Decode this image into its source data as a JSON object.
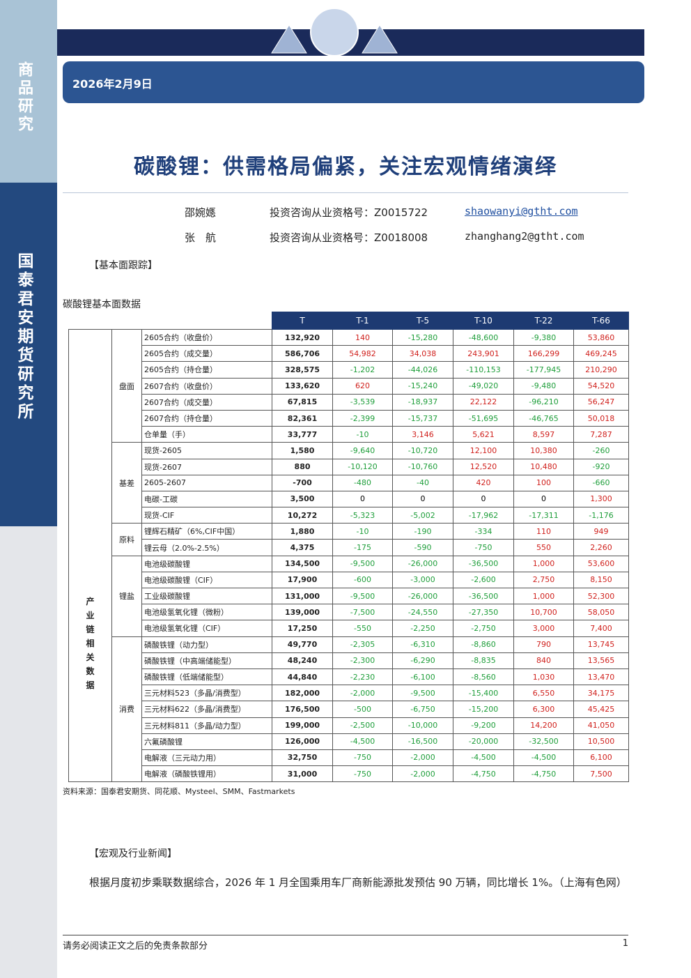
{
  "sidebar": {
    "top": "商品研究",
    "bottom": "国泰君安期货研究所"
  },
  "header": {
    "date": "2026年2月9日",
    "title": "碳酸锂：供需格局偏紧，关注宏观情绪演绎"
  },
  "authors": [
    {
      "name": "邵婉嫕",
      "cert": "投资咨询从业资格号：Z0015722",
      "email": "shaowanyi@gtht.com"
    },
    {
      "name": "张　航",
      "cert": "投资咨询从业资格号：Z0018008",
      "email": "zhanghang2@gtht.com"
    }
  ],
  "section1": "【基本面跟踪】",
  "table": {
    "caption": "碳酸锂基本面数据",
    "headers": [
      "T",
      "T-1",
      "T-5",
      "T-10",
      "T-22",
      "T-66"
    ],
    "group": "产业链相关数据",
    "sections": [
      {
        "name": "盘面",
        "rows": [
          [
            "2605合约（收盘价）",
            "132,920",
            "140",
            "-15,280",
            "-48,600",
            "-9,380",
            "53,860"
          ],
          [
            "2605合约（成交量）",
            "586,706",
            "54,982",
            "34,038",
            "243,901",
            "166,299",
            "469,245"
          ],
          [
            "2605合约（持仓量）",
            "328,575",
            "-1,202",
            "-44,026",
            "-110,153",
            "-177,945",
            "210,290"
          ],
          [
            "2607合约（收盘价）",
            "133,620",
            "620",
            "-15,240",
            "-49,020",
            "-9,480",
            "54,520"
          ],
          [
            "2607合约（成交量）",
            "67,815",
            "-3,539",
            "-18,937",
            "22,122",
            "-96,210",
            "56,247"
          ],
          [
            "2607合约（持仓量）",
            "82,361",
            "-2,399",
            "-15,737",
            "-51,695",
            "-46,765",
            "50,018"
          ],
          [
            "仓单量（手）",
            "33,777",
            "-10",
            "3,146",
            "5,621",
            "8,597",
            "7,287"
          ]
        ]
      },
      {
        "name": "基差",
        "rows": [
          [
            "现货-2605",
            "1,580",
            "-9,640",
            "-10,720",
            "12,100",
            "10,380",
            "-260"
          ],
          [
            "现货-2607",
            "880",
            "-10,120",
            "-10,760",
            "12,520",
            "10,480",
            "-920"
          ],
          [
            "2605-2607",
            "-700",
            "-480",
            "-40",
            "420",
            "100",
            "-660"
          ],
          [
            "电碳-工碳",
            "3,500",
            "0",
            "0",
            "0",
            "0",
            "1,300"
          ],
          [
            "现货-CIF",
            "10,272",
            "-5,323",
            "-5,002",
            "-17,962",
            "-17,311",
            "-1,176"
          ]
        ]
      },
      {
        "name": "原料",
        "rows": [
          [
            "锂辉石精矿（6%,CIF中国）",
            "1,880",
            "-10",
            "-190",
            "-334",
            "110",
            "949"
          ],
          [
            "锂云母（2.0%-2.5%）",
            "4,375",
            "-175",
            "-590",
            "-750",
            "550",
            "2,260"
          ]
        ]
      },
      {
        "name": "锂盐",
        "rows": [
          [
            "电池级碳酸锂",
            "134,500",
            "-9,500",
            "-26,000",
            "-36,500",
            "1,000",
            "53,600"
          ],
          [
            "电池级碳酸锂（CIF）",
            "17,900",
            "-600",
            "-3,000",
            "-2,600",
            "2,750",
            "8,150"
          ],
          [
            "工业级碳酸锂",
            "131,000",
            "-9,500",
            "-26,000",
            "-36,500",
            "1,000",
            "52,300"
          ],
          [
            "电池级氢氧化锂（微粉）",
            "139,000",
            "-7,500",
            "-24,550",
            "-27,350",
            "10,700",
            "58,050"
          ],
          [
            "电池级氢氧化锂（CIF）",
            "17,250",
            "-550",
            "-2,250",
            "-2,750",
            "3,000",
            "7,400"
          ]
        ]
      },
      {
        "name": "消费",
        "rows": [
          [
            "磷酸铁锂（动力型）",
            "49,770",
            "-2,305",
            "-6,310",
            "-8,860",
            "790",
            "13,745"
          ],
          [
            "磷酸铁锂（中高端储能型）",
            "48,240",
            "-2,300",
            "-6,290",
            "-8,835",
            "840",
            "13,565"
          ],
          [
            "磷酸铁锂（低端储能型）",
            "44,840",
            "-2,230",
            "-6,100",
            "-8,560",
            "1,030",
            "13,470"
          ],
          [
            "三元材料523（多晶/消费型）",
            "182,000",
            "-2,000",
            "-9,500",
            "-15,400",
            "6,550",
            "34,175"
          ],
          [
            "三元材料622（多晶/消费型）",
            "176,500",
            "-500",
            "-6,750",
            "-15,200",
            "6,300",
            "45,425"
          ],
          [
            "三元材料811（多晶/动力型）",
            "199,000",
            "-2,500",
            "-10,000",
            "-9,200",
            "14,200",
            "41,050"
          ],
          [
            "六氟磷酸锂",
            "126,000",
            "-4,500",
            "-16,500",
            "-20,000",
            "-32,500",
            "10,500"
          ],
          [
            "电解液（三元动力用）",
            "32,750",
            "-750",
            "-2,000",
            "-4,500",
            "-4,500",
            "6,100"
          ],
          [
            "电解液（磷酸铁锂用）",
            "31,000",
            "-750",
            "-2,000",
            "-4,750",
            "-4,750",
            "7,500"
          ]
        ]
      }
    ],
    "source": "资料来源：国泰君安期货、同花顺、Mysteel、SMM、Fastmarkets"
  },
  "section2": "【宏观及行业新闻】",
  "news": "根据月度初步乘联数据综合，2026 年 1 月全国乘用车厂商新能源批发预估 90 万辆，同比增长 1%。（上海有色网）",
  "footer": {
    "disclaimer": "请务必阅读正文之后的免责条款部分",
    "page": "1"
  }
}
